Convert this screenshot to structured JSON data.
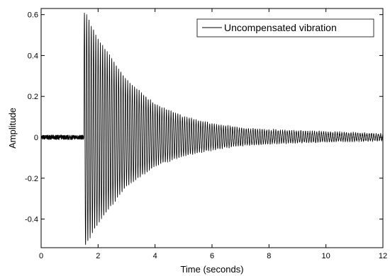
{
  "chart_data": {
    "type": "line",
    "title": "",
    "xlabel": "Time (seconds)",
    "ylabel": "Amplitude",
    "xlim": [
      0,
      12
    ],
    "ylim": [
      -0.54,
      0.63
    ],
    "xticks": [
      0,
      2,
      4,
      6,
      8,
      10,
      12
    ],
    "xtick_labels": [
      "0",
      "2",
      "4",
      "6",
      "8",
      "10",
      "12"
    ],
    "yticks": [
      -0.4,
      -0.2,
      0,
      0.2,
      0.4,
      0.6
    ],
    "ytick_labels": [
      "-0.4",
      "-0.2",
      "0",
      "0.2",
      "0.4",
      "0.6"
    ],
    "grid": false,
    "legend_position": "top-right",
    "series": [
      {
        "name": "Uncompensated vibration",
        "color": "#000000",
        "noise_amplitude": 0.012,
        "onset_time": 1.5,
        "envelope_top": {
          "t": [
            1.55,
            2,
            3,
            4,
            5,
            6,
            7,
            8,
            9,
            10,
            11,
            12
          ],
          "a": [
            0.61,
            0.48,
            0.28,
            0.16,
            0.1,
            0.065,
            0.045,
            0.035,
            0.03,
            0.025,
            0.02,
            0.015
          ]
        },
        "envelope_bottom": {
          "t": [
            1.55,
            2,
            3,
            4,
            5,
            6,
            7,
            8,
            9,
            10,
            11,
            12
          ],
          "a": [
            -0.53,
            -0.42,
            -0.24,
            -0.14,
            -0.09,
            -0.06,
            -0.04,
            -0.03,
            -0.025,
            -0.02,
            -0.018,
            -0.015
          ]
        },
        "oscillation_frequency_hz": 12.5
      }
    ]
  }
}
